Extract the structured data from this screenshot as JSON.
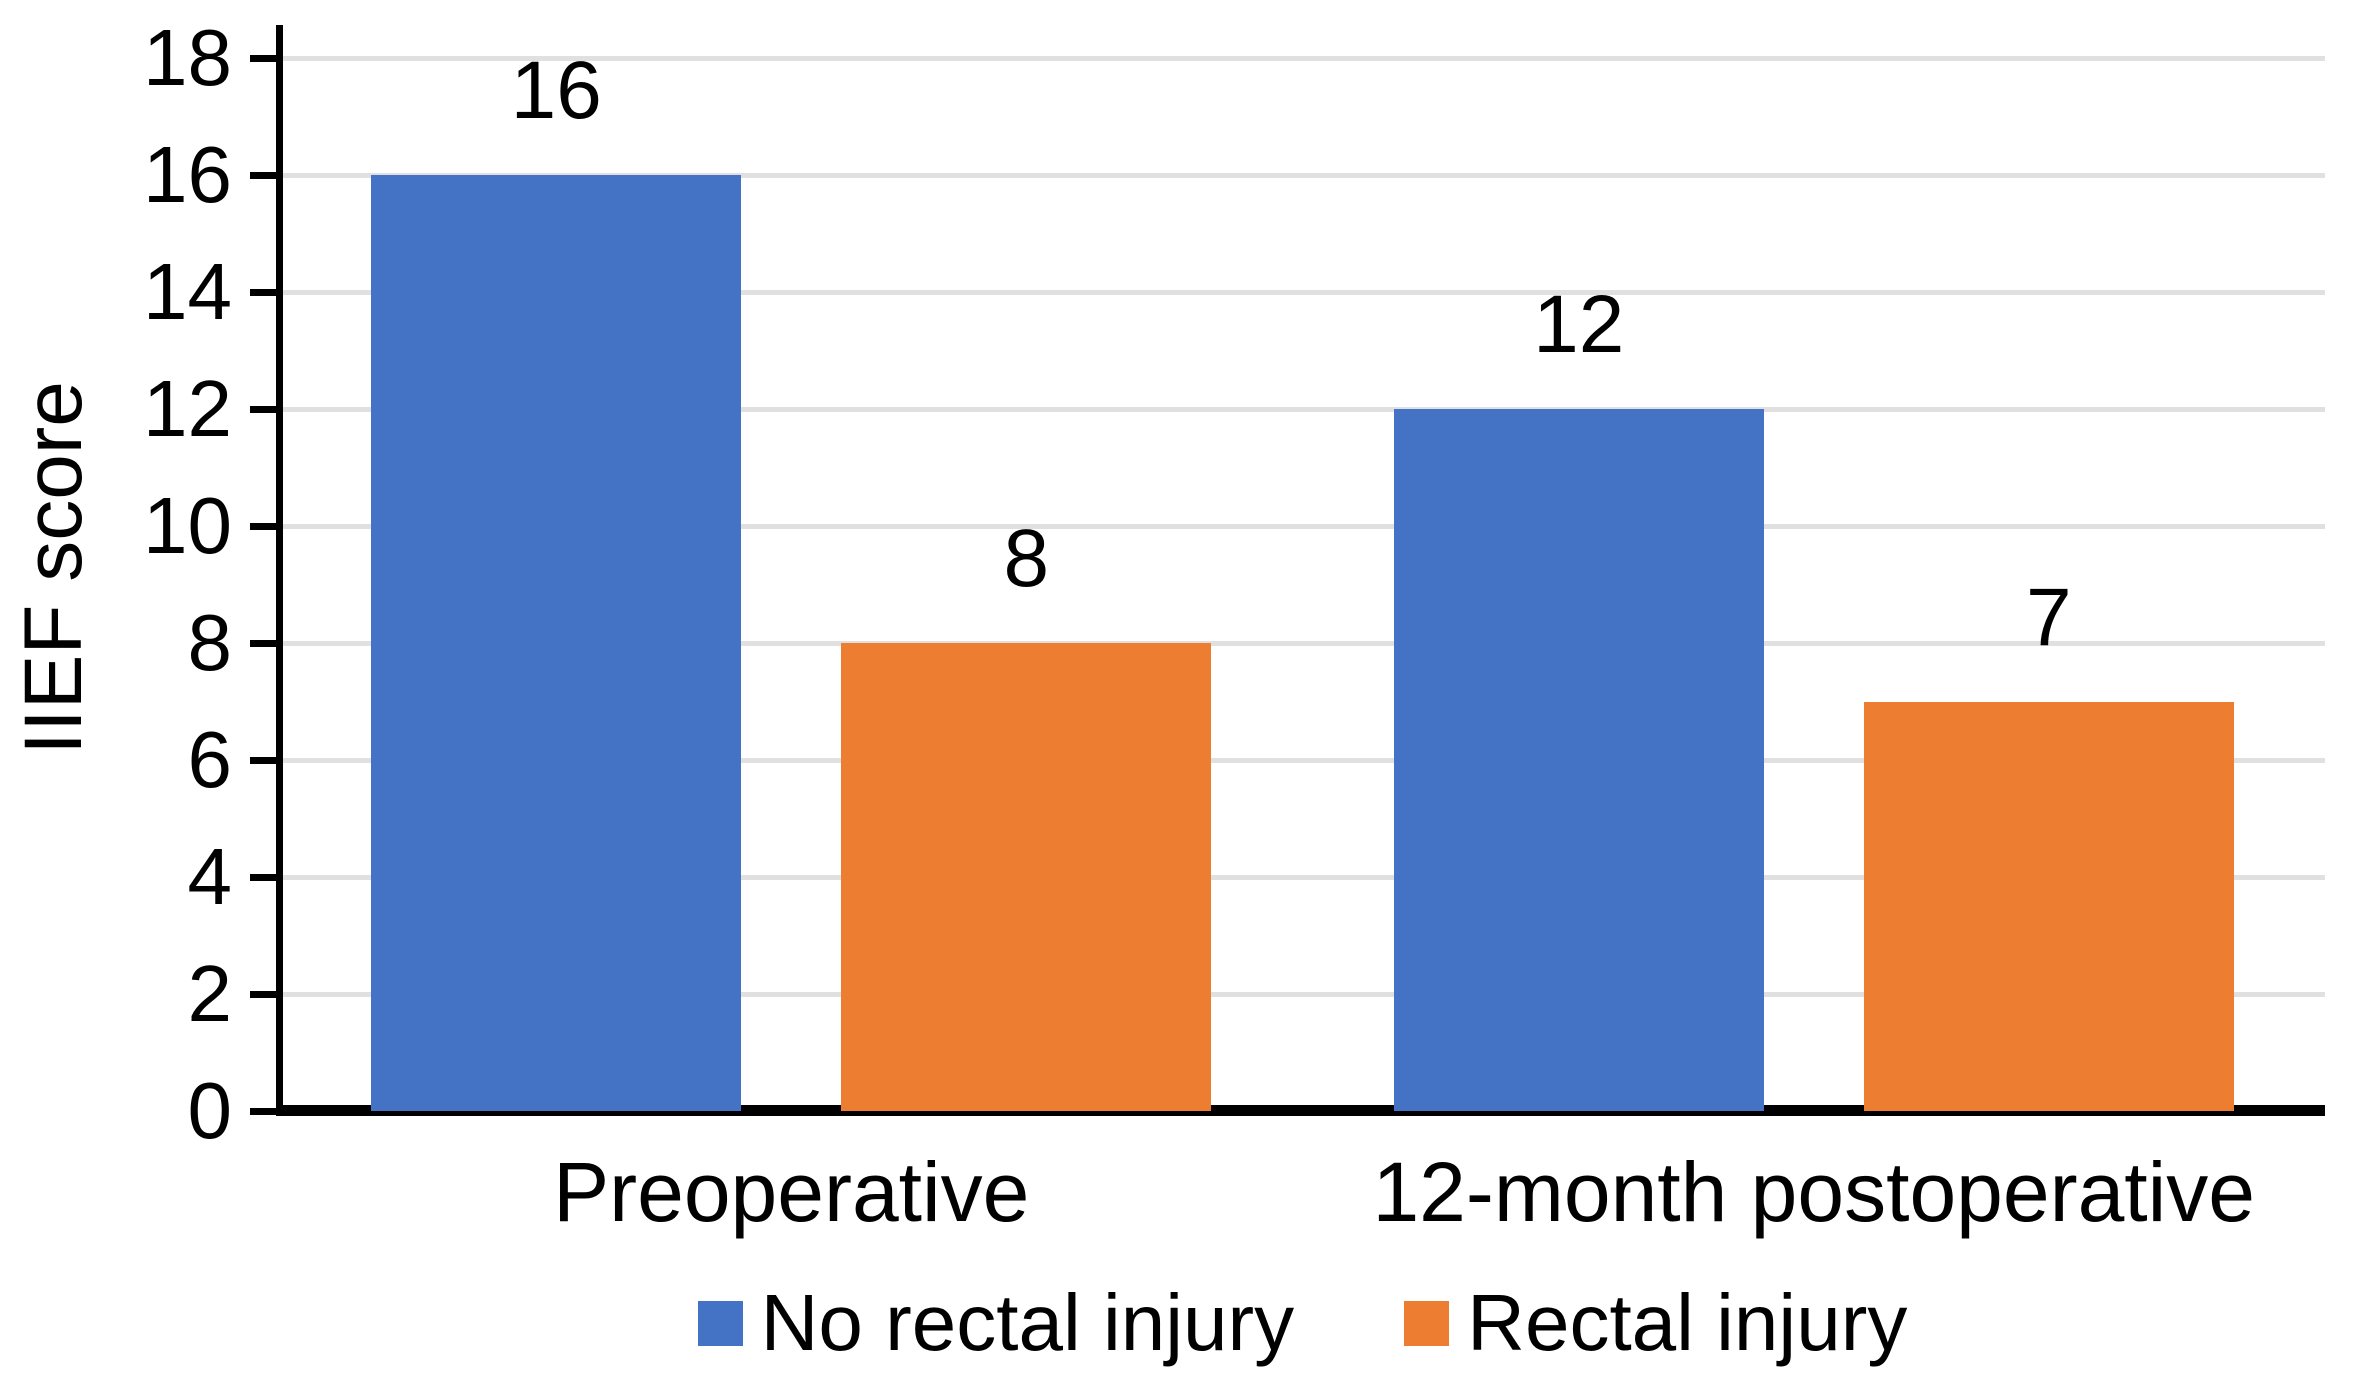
{
  "chart_data": {
    "type": "bar",
    "categories": [
      "Preoperative",
      "12-month postoperative"
    ],
    "series": [
      {
        "name": "No rectal injury",
        "color": "#4472C4",
        "values": [
          16,
          12
        ]
      },
      {
        "name": "Rectal injury",
        "color": "#ED7D31",
        "values": [
          8,
          7
        ]
      }
    ],
    "title": "",
    "xlabel": "",
    "ylabel": "IIEF score",
    "ylim": [
      0,
      18
    ],
    "yticks": [
      0,
      2,
      4,
      6,
      8,
      10,
      12,
      14,
      16,
      18
    ],
    "show_data_labels": true,
    "grid": "horizontal",
    "legend_position": "bottom",
    "colors": {
      "gridline": "#E0E0E0",
      "axis": "#000000",
      "text": "#000000",
      "background": "#FFFFFF"
    }
  }
}
